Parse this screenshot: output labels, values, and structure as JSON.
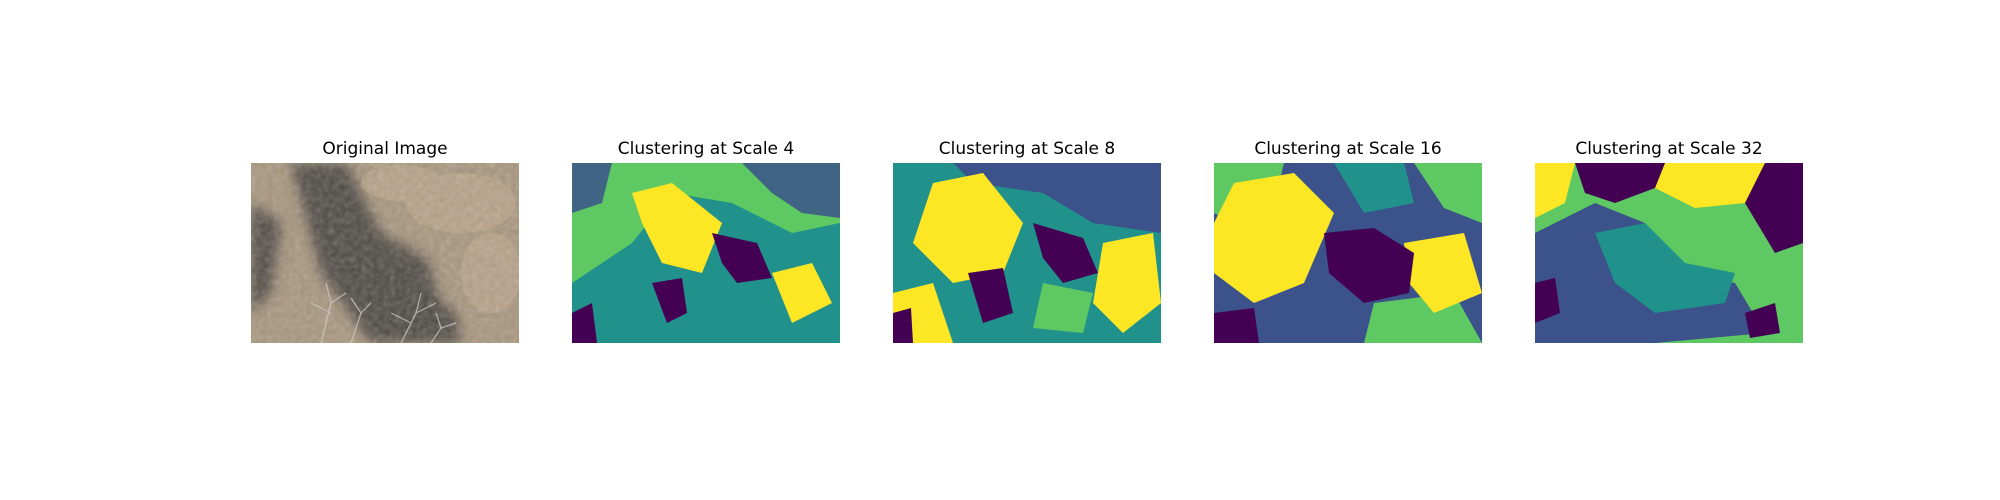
{
  "figure": {
    "panels": [
      {
        "title": "Original Image",
        "kind": "photo"
      },
      {
        "title": "Clustering at Scale 4",
        "kind": "cluster",
        "scale": 4
      },
      {
        "title": "Clustering at Scale 8",
        "kind": "cluster",
        "scale": 8
      },
      {
        "title": "Clustering at Scale 16",
        "kind": "cluster",
        "scale": 16
      },
      {
        "title": "Clustering at Scale 32",
        "kind": "cluster",
        "scale": 32
      }
    ],
    "cluster_colors": [
      "#440154",
      "#3b528b",
      "#21918c",
      "#5ec962",
      "#fde725"
    ],
    "photo_colors": {
      "base": "#a8957c",
      "shadow": "#3e3a38",
      "grass": "#c2a98c",
      "branches": "#d7d2cc"
    }
  }
}
